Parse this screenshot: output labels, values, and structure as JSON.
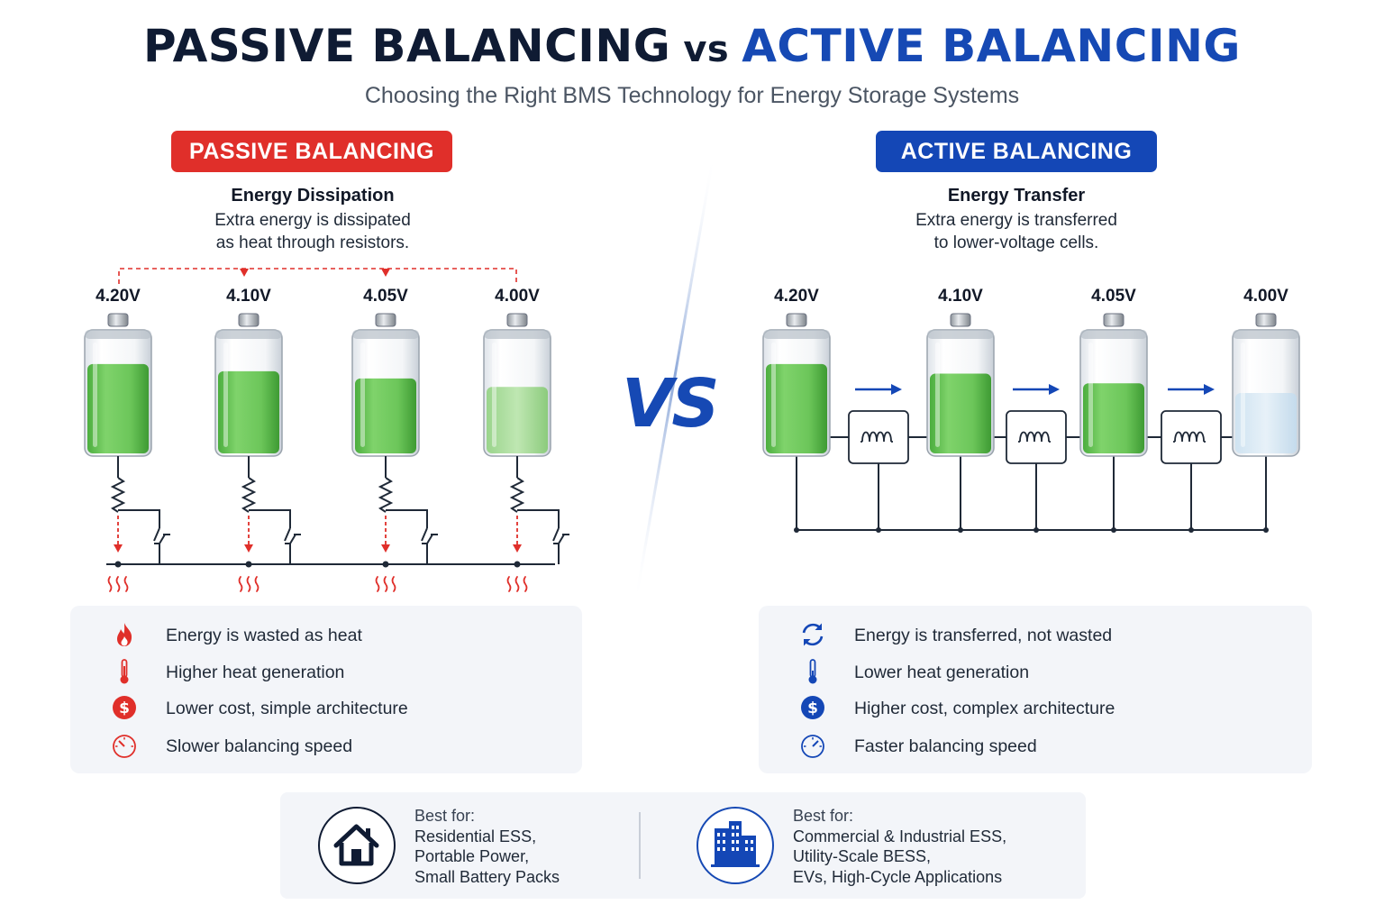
{
  "header": {
    "title_passive": "PASSIVE BALANCING",
    "title_vs": "vs",
    "title_active": "ACTIVE BALANCING",
    "subtitle": "Choosing the Right BMS Technology for Energy Storage Systems"
  },
  "center_vs": "VS",
  "passive": {
    "tag": "PASSIVE BALANCING",
    "heading": "Energy Dissipation",
    "desc_line1": "Extra energy is dissipated",
    "desc_line2": "as heat through resistors.",
    "cells": [
      {
        "voltage": "4.20V",
        "level": 0.74
      },
      {
        "voltage": "4.10V",
        "level": 0.68
      },
      {
        "voltage": "4.05V",
        "level": 0.62
      },
      {
        "voltage": "4.00V",
        "level": 0.55
      }
    ],
    "features": [
      {
        "icon": "flame-icon",
        "text": "Energy is wasted as heat"
      },
      {
        "icon": "thermometer-icon",
        "text": "Higher heat generation"
      },
      {
        "icon": "dollar-icon",
        "text": "Lower cost, simple architecture"
      },
      {
        "icon": "speedometer-icon",
        "text": "Slower balancing speed"
      }
    ],
    "best_for_label": "Best for:",
    "best_for": [
      "Residential ESS,",
      "Portable Power,",
      "Small Battery Packs"
    ],
    "best_for_icon": "house-icon",
    "color": "#e02f2a"
  },
  "active": {
    "tag": "ACTIVE BALANCING",
    "heading": "Energy Transfer",
    "desc_line1": "Extra energy is transferred",
    "desc_line2": "to lower-voltage cells.",
    "cells": [
      {
        "voltage": "4.20V",
        "level": 0.74
      },
      {
        "voltage": "4.10V",
        "level": 0.66
      },
      {
        "voltage": "4.05V",
        "level": 0.58
      },
      {
        "voltage": "4.00V",
        "level": 0.5
      }
    ],
    "features": [
      {
        "icon": "refresh-cycle-icon",
        "text": "Energy is transferred, not wasted"
      },
      {
        "icon": "thermometer-icon",
        "text": "Lower heat generation"
      },
      {
        "icon": "dollar-icon",
        "text": "Higher cost, complex architecture"
      },
      {
        "icon": "speedometer-icon",
        "text": "Faster balancing speed"
      }
    ],
    "best_for_label": "Best for:",
    "best_for": [
      "Commercial & Industrial ESS,",
      "Utility-Scale BESS,",
      "EVs, High-Cycle Applications"
    ],
    "best_for_icon": "buildings-icon",
    "color": "#1447b6"
  }
}
